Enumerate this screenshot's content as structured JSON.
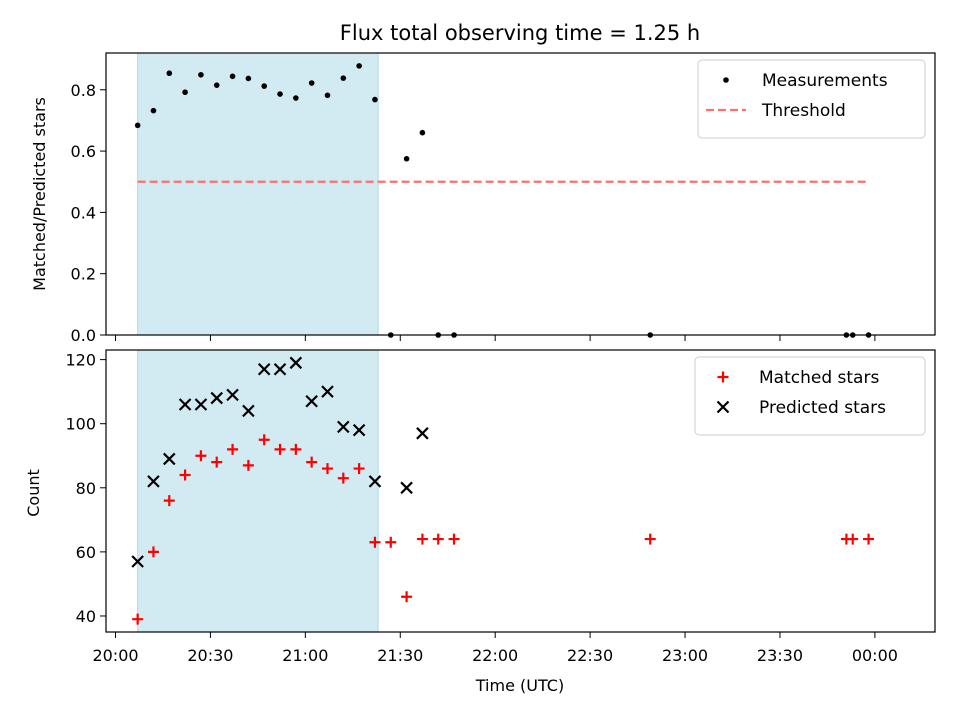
{
  "chart_data": [
    {
      "type": "scatter",
      "title": "Flux total observing time = 1.25 h",
      "xlabel": "",
      "ylabel": "Matched/Predicted stars",
      "xlim": [
        "19:57",
        "00:19"
      ],
      "ylim": [
        0,
        0.92
      ],
      "yticks": [
        0.0,
        0.2,
        0.4,
        0.6,
        0.8
      ],
      "ytick_labels": [
        "0.0",
        "0.2",
        "0.4",
        "0.6",
        "0.8"
      ],
      "shaded_span": {
        "start": "20:07",
        "end": "21:23",
        "color": "#add8e6"
      },
      "legend": {
        "position": "top-right",
        "entries": [
          {
            "label": "Measurements",
            "marker": "dot",
            "color": "#000000"
          },
          {
            "label": "Threshold",
            "marker": "dashed-line",
            "color": "#ff6f6f"
          }
        ]
      },
      "series": [
        {
          "name": "Measurements",
          "color": "#000000",
          "points": [
            {
              "x": "20:07",
              "y": 0.684
            },
            {
              "x": "20:12",
              "y": 0.732
            },
            {
              "x": "20:17",
              "y": 0.854
            },
            {
              "x": "20:22",
              "y": 0.792
            },
            {
              "x": "20:27",
              "y": 0.849
            },
            {
              "x": "20:32",
              "y": 0.815
            },
            {
              "x": "20:37",
              "y": 0.844
            },
            {
              "x": "20:42",
              "y": 0.837
            },
            {
              "x": "20:47",
              "y": 0.812
            },
            {
              "x": "20:52",
              "y": 0.786
            },
            {
              "x": "20:57",
              "y": 0.773
            },
            {
              "x": "21:02",
              "y": 0.822
            },
            {
              "x": "21:07",
              "y": 0.782
            },
            {
              "x": "21:12",
              "y": 0.838
            },
            {
              "x": "21:17",
              "y": 0.878
            },
            {
              "x": "21:22",
              "y": 0.768
            },
            {
              "x": "21:27",
              "y": 0.0
            },
            {
              "x": "21:32",
              "y": 0.575
            },
            {
              "x": "21:37",
              "y": 0.66
            },
            {
              "x": "21:42",
              "y": 0.0
            },
            {
              "x": "21:47",
              "y": 0.0
            },
            {
              "x": "22:49",
              "y": 0.0
            },
            {
              "x": "23:51",
              "y": 0.0
            },
            {
              "x": "23:53",
              "y": 0.0
            },
            {
              "x": "23:58",
              "y": 0.0
            }
          ]
        },
        {
          "name": "Threshold",
          "color": "#ff6f6f",
          "line": [
            {
              "x": "20:07",
              "y": 0.5
            },
            {
              "x": "23:58",
              "y": 0.5
            }
          ]
        }
      ]
    },
    {
      "type": "scatter",
      "xlabel": "Time (UTC)",
      "ylabel": "Count",
      "xlim": [
        "19:57",
        "00:19"
      ],
      "ylim": [
        35,
        123
      ],
      "xticks": [
        "20:00",
        "20:30",
        "21:00",
        "21:30",
        "22:00",
        "22:30",
        "23:00",
        "23:30",
        "00:00"
      ],
      "yticks": [
        40,
        60,
        80,
        100,
        120
      ],
      "ytick_labels": [
        "40",
        "60",
        "80",
        "100",
        "120"
      ],
      "shaded_span": {
        "start": "20:07",
        "end": "21:23",
        "color": "#add8e6"
      },
      "legend": {
        "position": "top-right",
        "entries": [
          {
            "label": "Matched stars",
            "marker": "plus",
            "color": "#ff0000"
          },
          {
            "label": "Predicted stars",
            "marker": "x",
            "color": "#000000"
          }
        ]
      },
      "series": [
        {
          "name": "Matched stars",
          "color": "#ff0000",
          "points": [
            {
              "x": "20:07",
              "y": 39
            },
            {
              "x": "20:12",
              "y": 60
            },
            {
              "x": "20:17",
              "y": 76
            },
            {
              "x": "20:22",
              "y": 84
            },
            {
              "x": "20:27",
              "y": 90
            },
            {
              "x": "20:32",
              "y": 88
            },
            {
              "x": "20:37",
              "y": 92
            },
            {
              "x": "20:42",
              "y": 87
            },
            {
              "x": "20:47",
              "y": 95
            },
            {
              "x": "20:52",
              "y": 92
            },
            {
              "x": "20:57",
              "y": 92
            },
            {
              "x": "21:02",
              "y": 88
            },
            {
              "x": "21:07",
              "y": 86
            },
            {
              "x": "21:12",
              "y": 83
            },
            {
              "x": "21:17",
              "y": 86
            },
            {
              "x": "21:22",
              "y": 63
            },
            {
              "x": "21:27",
              "y": 63
            },
            {
              "x": "21:32",
              "y": 46
            },
            {
              "x": "21:37",
              "y": 64
            },
            {
              "x": "21:42",
              "y": 64
            },
            {
              "x": "21:47",
              "y": 64
            },
            {
              "x": "22:49",
              "y": 64
            },
            {
              "x": "23:51",
              "y": 64
            },
            {
              "x": "23:53",
              "y": 64
            },
            {
              "x": "23:58",
              "y": 64
            }
          ]
        },
        {
          "name": "Predicted stars",
          "color": "#000000",
          "points": [
            {
              "x": "20:07",
              "y": 57
            },
            {
              "x": "20:12",
              "y": 82
            },
            {
              "x": "20:17",
              "y": 89
            },
            {
              "x": "20:22",
              "y": 106
            },
            {
              "x": "20:27",
              "y": 106
            },
            {
              "x": "20:32",
              "y": 108
            },
            {
              "x": "20:37",
              "y": 109
            },
            {
              "x": "20:42",
              "y": 104
            },
            {
              "x": "20:47",
              "y": 117
            },
            {
              "x": "20:52",
              "y": 117
            },
            {
              "x": "20:57",
              "y": 119
            },
            {
              "x": "21:02",
              "y": 107
            },
            {
              "x": "21:07",
              "y": 110
            },
            {
              "x": "21:12",
              "y": 99
            },
            {
              "x": "21:17",
              "y": 98
            },
            {
              "x": "21:22",
              "y": 82
            },
            {
              "x": "21:32",
              "y": 80
            },
            {
              "x": "21:37",
              "y": 97
            }
          ]
        }
      ]
    }
  ]
}
